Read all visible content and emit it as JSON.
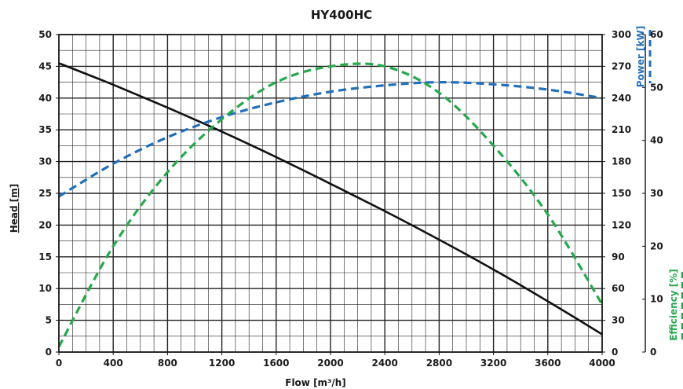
{
  "chart_data": {
    "type": "line",
    "title": "HY400HC",
    "xlabel": "Flow [m³/h]",
    "ylabel_left": "Head [m]",
    "ylabel_right_power": "Power [kW]",
    "ylabel_right_efficiency": "Efficiency [%]",
    "x_ticks": [
      0,
      400,
      800,
      1200,
      1600,
      2000,
      2400,
      2800,
      3200,
      3600,
      4000
    ],
    "xlim": [
      0,
      4000
    ],
    "head_axis": {
      "ylim": [
        0,
        50
      ],
      "ticks": [
        0,
        5,
        10,
        15,
        20,
        25,
        30,
        35,
        40,
        45,
        50
      ]
    },
    "power_axis": {
      "ylim": [
        0,
        300
      ],
      "ticks": [
        0,
        30,
        60,
        90,
        120,
        150,
        180,
        210,
        240,
        270,
        300
      ]
    },
    "efficiency_axis": {
      "ylim": [
        0,
        60
      ],
      "ticks": [
        0,
        10,
        20,
        30,
        40,
        50,
        60
      ]
    },
    "grid": true,
    "series": [
      {
        "name": "Head",
        "axis": "head",
        "color": "#111111",
        "style": "solid",
        "x": [
          0,
          400,
          800,
          1200,
          1600,
          2000,
          2400,
          2800,
          3200,
          3600,
          4000
        ],
        "values": [
          45.5,
          42.1,
          38.5,
          34.7,
          30.7,
          26.5,
          22.2,
          17.7,
          13.0,
          8.0,
          2.8
        ]
      },
      {
        "name": "Power",
        "axis": "power",
        "color": "#1f6fbf",
        "style": "dashed",
        "x": [
          0,
          400,
          800,
          1200,
          1600,
          2000,
          2400,
          2800,
          3200,
          3600,
          4000
        ],
        "values": [
          147,
          178,
          203,
          222,
          236,
          246,
          252,
          255,
          253,
          248,
          240
        ]
      },
      {
        "name": "Efficiency",
        "axis": "efficiency",
        "color": "#22aa4a",
        "style": "dashed",
        "x": [
          0,
          400,
          800,
          1200,
          1600,
          2000,
          2400,
          2800,
          3200,
          3600,
          4000
        ],
        "values": [
          1,
          20,
          34,
          44,
          51,
          54,
          54,
          49,
          39,
          26,
          9
        ]
      }
    ]
  },
  "colors": {
    "head": "#111111",
    "power": "#1f6fbf",
    "efficiency": "#22aa4a",
    "grid": "#222222"
  }
}
